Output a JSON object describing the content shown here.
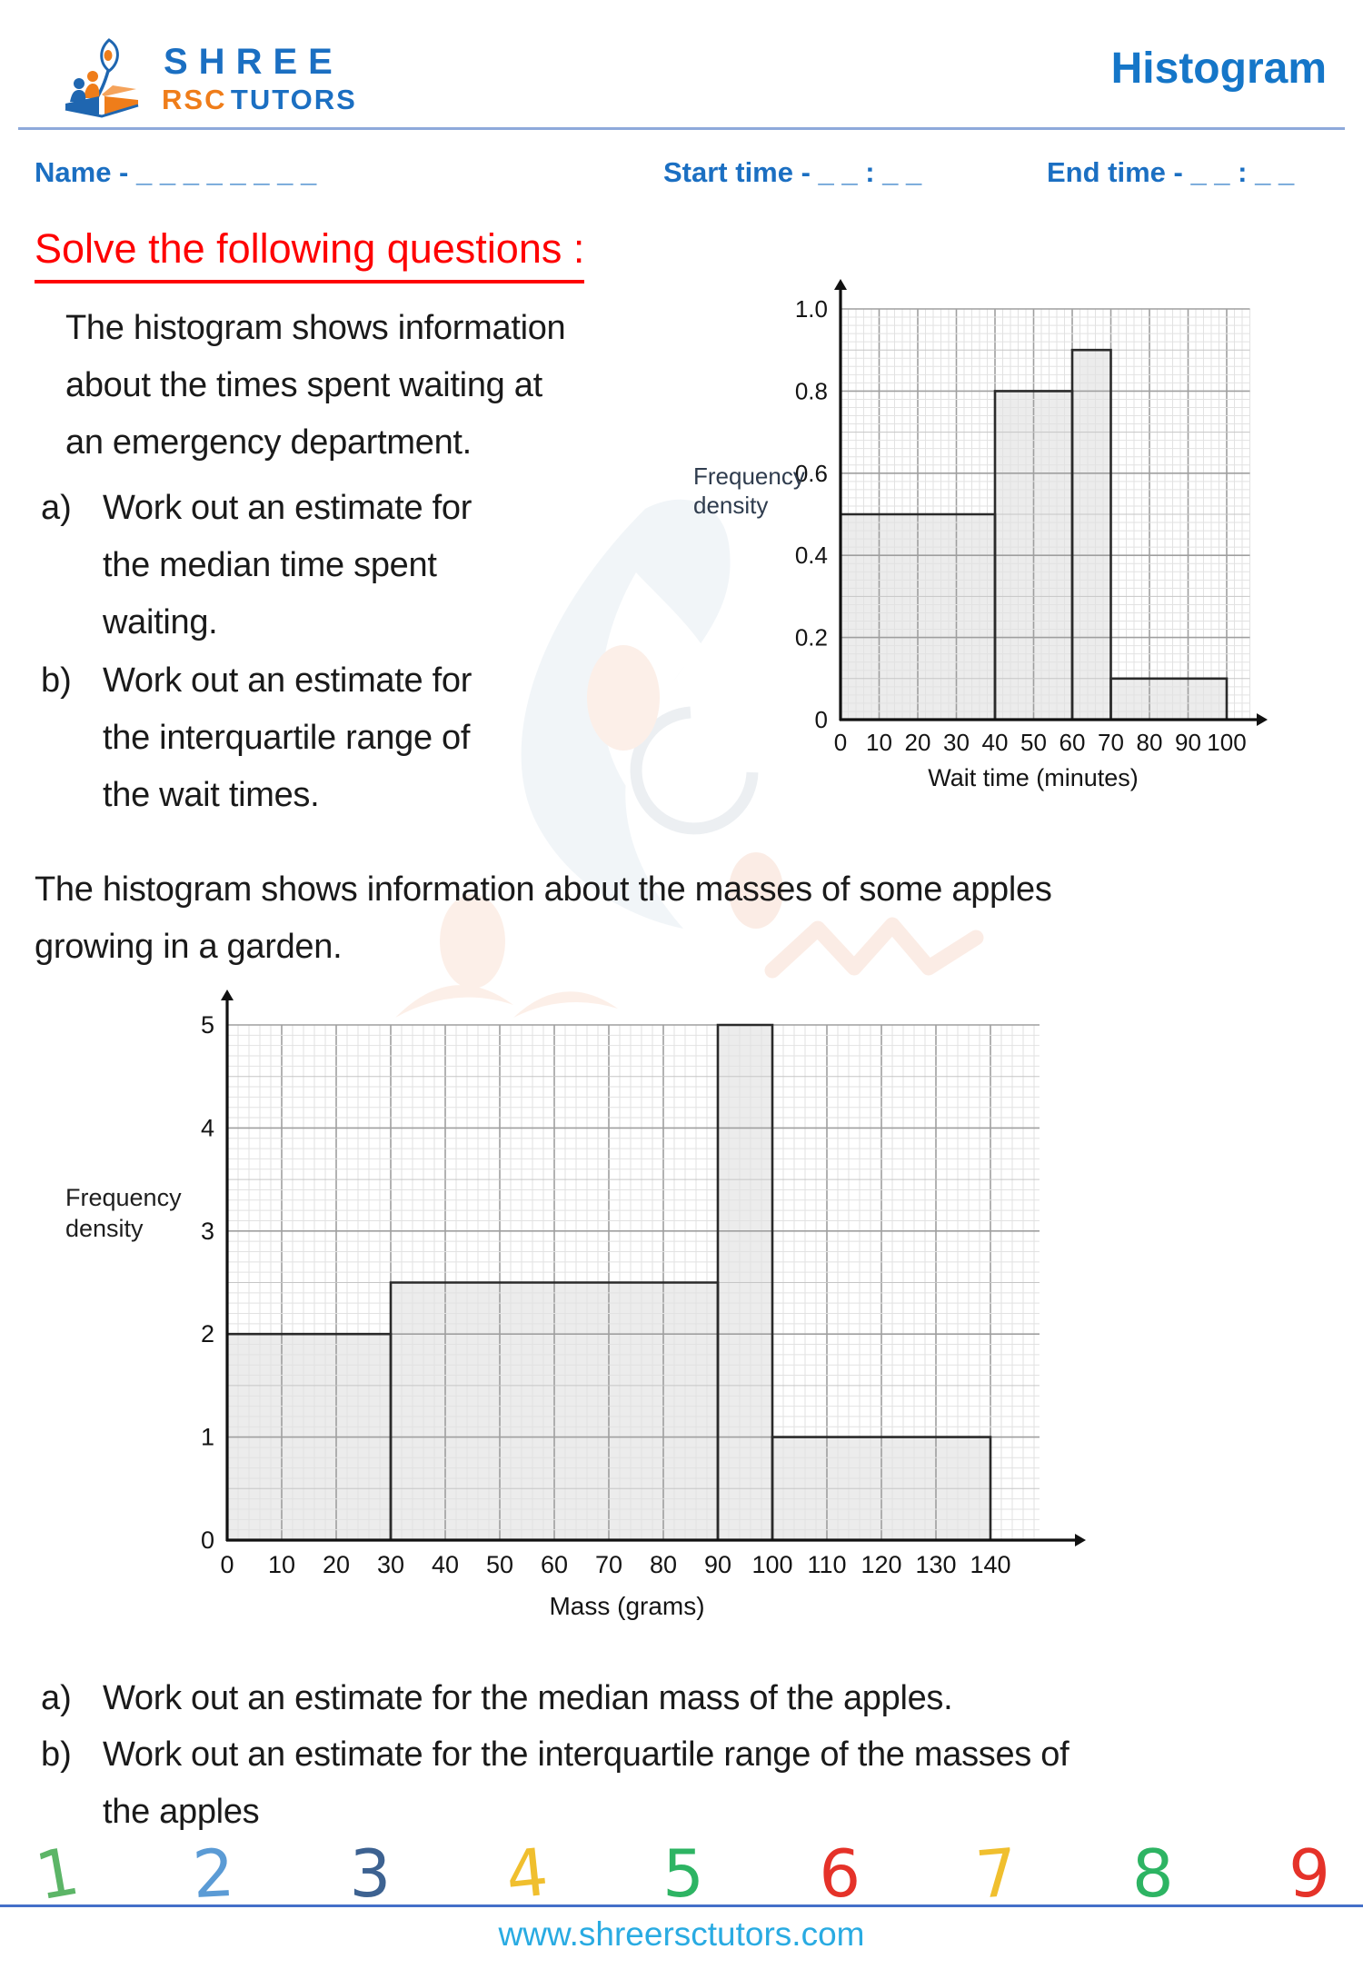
{
  "header": {
    "brand": {
      "word1": "SHREE",
      "word2": "RSC",
      "word3": "TUTORS",
      "logo_icon": "book-flame-students-logo"
    },
    "title": "Histogram"
  },
  "fields": {
    "name": "Name - _ _ _ _ _ _ _ _",
    "start_time": "Start time - _ _ : _ _",
    "end_time": "End time - _ _ : _ _"
  },
  "heading": "Solve the following questions :",
  "question1": {
    "intro": "The histogram shows information\nabout the times spent waiting at\nan emergency department.",
    "parts": [
      {
        "label": "a)",
        "text": "Work out an estimate for\nthe median time spent\nwaiting."
      },
      {
        "label": "b)",
        "text": "Work out an estimate for\nthe interquartile range of\nthe wait times."
      }
    ]
  },
  "question2": {
    "intro": "The histogram shows information about the masses of some apples\ngrowing in a garden.",
    "parts": [
      {
        "label": "a)",
        "text": "Work out an estimate for the median mass of the apples."
      },
      {
        "label": "b)",
        "text": "Work out an estimate for the interquartile range of the masses of\nthe apples"
      }
    ]
  },
  "footer": {
    "digits": [
      {
        "value": "1",
        "color": "#5cb567"
      },
      {
        "value": "2",
        "color": "#5b9bd5"
      },
      {
        "value": "3",
        "color": "#3d6291"
      },
      {
        "value": "4",
        "color": "#f0bf2e"
      },
      {
        "value": "5",
        "color": "#2db463"
      },
      {
        "value": "6",
        "color": "#e53229"
      },
      {
        "value": "7",
        "color": "#f0bf2e"
      },
      {
        "value": "8",
        "color": "#2db463"
      },
      {
        "value": "9",
        "color": "#e53229"
      }
    ],
    "url": "www.shreersctutors.com"
  },
  "colors": {
    "accent_blue": "#1b6fc2",
    "brand_orange": "#ef7d1a",
    "heading_red": "#fe0101",
    "footer_link_blue": "#29abe2",
    "header_rule": "#8ea9db",
    "footer_rule": "#4470c9",
    "bar_fill": "#ececec",
    "bar_stroke": "#2a2a2a"
  },
  "chart_data": [
    {
      "type": "bar",
      "subtype": "histogram",
      "title": "",
      "ylabel": "Frequency density",
      "xlabel": "Wait time (minutes)",
      "ylim": [
        0,
        1.0
      ],
      "xlim": [
        0,
        100
      ],
      "grid": true,
      "legend": false,
      "bars": [
        {
          "from": 0,
          "to": 40,
          "frequency_density": 0.5
        },
        {
          "from": 40,
          "to": 60,
          "frequency_density": 0.8
        },
        {
          "from": 60,
          "to": 70,
          "frequency_density": 0.9
        },
        {
          "from": 70,
          "to": 100,
          "frequency_density": 0.1
        }
      ],
      "x_ticks": [
        0,
        10,
        20,
        30,
        40,
        50,
        60,
        70,
        80,
        90,
        100
      ],
      "y_ticks": [
        0,
        0.2,
        0.4,
        0.6,
        0.8,
        1.0
      ],
      "y_tick_labels": [
        "0",
        "0.2",
        "0.4",
        "0.6",
        "0.8",
        "1.0"
      ]
    },
    {
      "type": "bar",
      "subtype": "histogram",
      "title": "",
      "ylabel": "Frequency density",
      "xlabel": "Mass (grams)",
      "ylim": [
        0,
        5
      ],
      "xlim": [
        0,
        140
      ],
      "grid": true,
      "legend": false,
      "bars": [
        {
          "from": 0,
          "to": 30,
          "frequency_density": 2
        },
        {
          "from": 30,
          "to": 90,
          "frequency_density": 2.5
        },
        {
          "from": 90,
          "to": 100,
          "frequency_density": 5
        },
        {
          "from": 100,
          "to": 140,
          "frequency_density": 1
        }
      ],
      "x_ticks": [
        0,
        10,
        20,
        30,
        40,
        50,
        60,
        70,
        80,
        90,
        100,
        110,
        120,
        130,
        140
      ],
      "y_ticks": [
        0,
        1,
        2,
        3,
        4,
        5
      ],
      "y_tick_labels": [
        "0",
        "1",
        "2",
        "3",
        "4",
        "5"
      ]
    }
  ]
}
